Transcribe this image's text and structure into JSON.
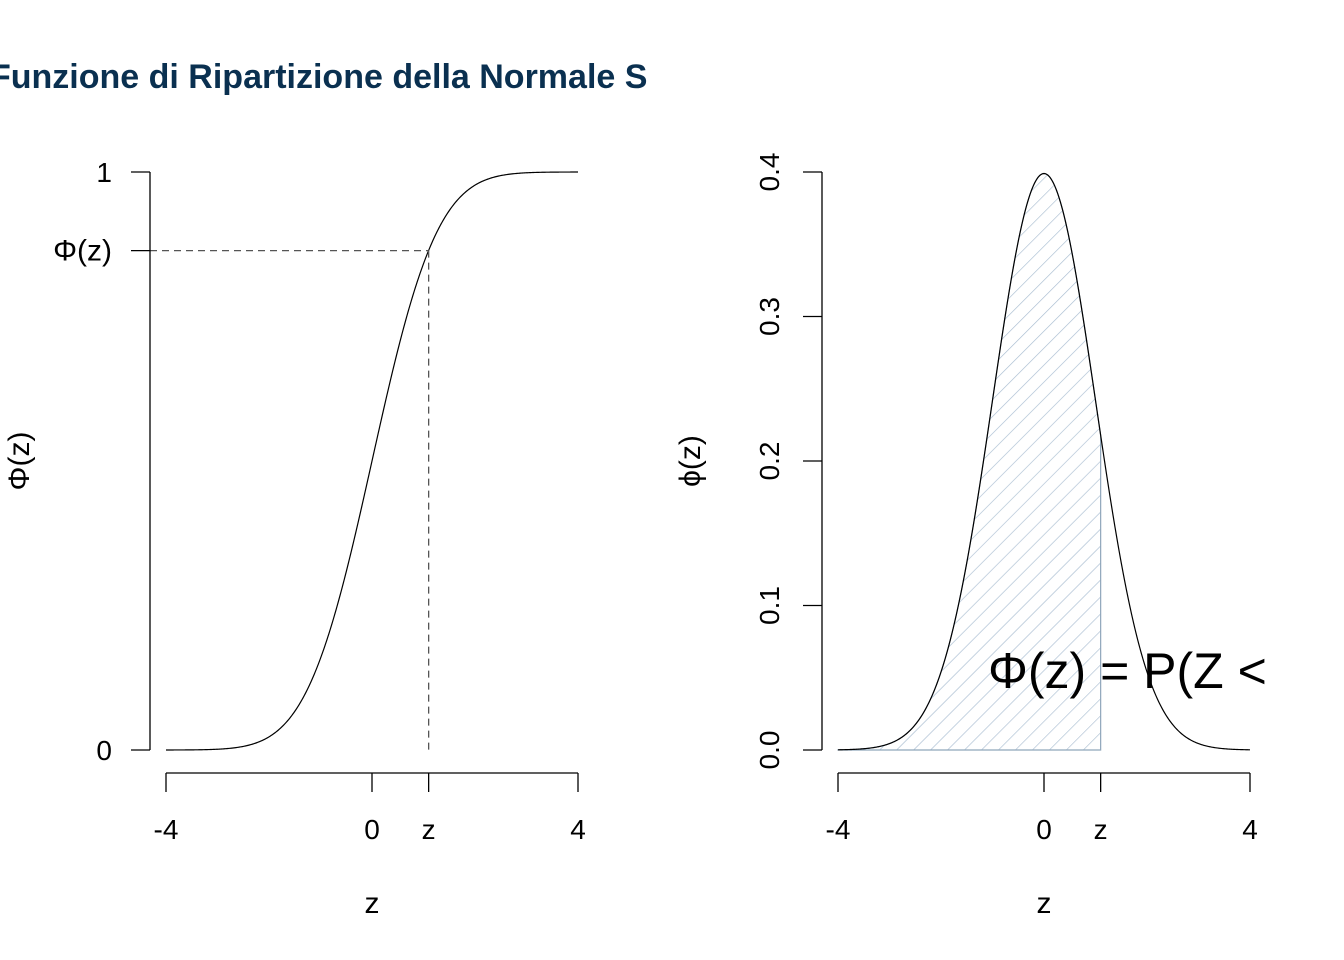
{
  "title": "Funzione di Ripartizione della Normale S",
  "colors": {
    "title": "#0a3050",
    "fill_hatch": "#a9bdd1",
    "fill_border": "#8fa6bb"
  },
  "chart_data": [
    {
      "type": "line",
      "function": "standard normal CDF",
      "xlim": [
        -4,
        4
      ],
      "ylim": [
        0,
        1
      ],
      "z_marker": 1.1,
      "phi_z": 0.864,
      "x_ticks": [
        "-4",
        "0",
        "z",
        "4"
      ],
      "y_ticks": [
        "0",
        "Φ(z)",
        "1"
      ],
      "xlabel": "z",
      "ylabel": "Φ(z)",
      "grid": false
    },
    {
      "type": "area",
      "function": "standard normal PDF",
      "xlim": [
        -4,
        4
      ],
      "ylim": [
        0,
        0.4
      ],
      "shaded_interval": [
        -4,
        1.1
      ],
      "z_marker": 1.1,
      "x_ticks": [
        "-4",
        "0",
        "z",
        "4"
      ],
      "y_ticks": [
        "0.0",
        "0.1",
        "0.2",
        "0.3",
        "0.4"
      ],
      "xlabel": "z",
      "ylabel": "ϕ(z)",
      "annotation": "Φ(z) = P(Z <",
      "grid": false
    }
  ]
}
